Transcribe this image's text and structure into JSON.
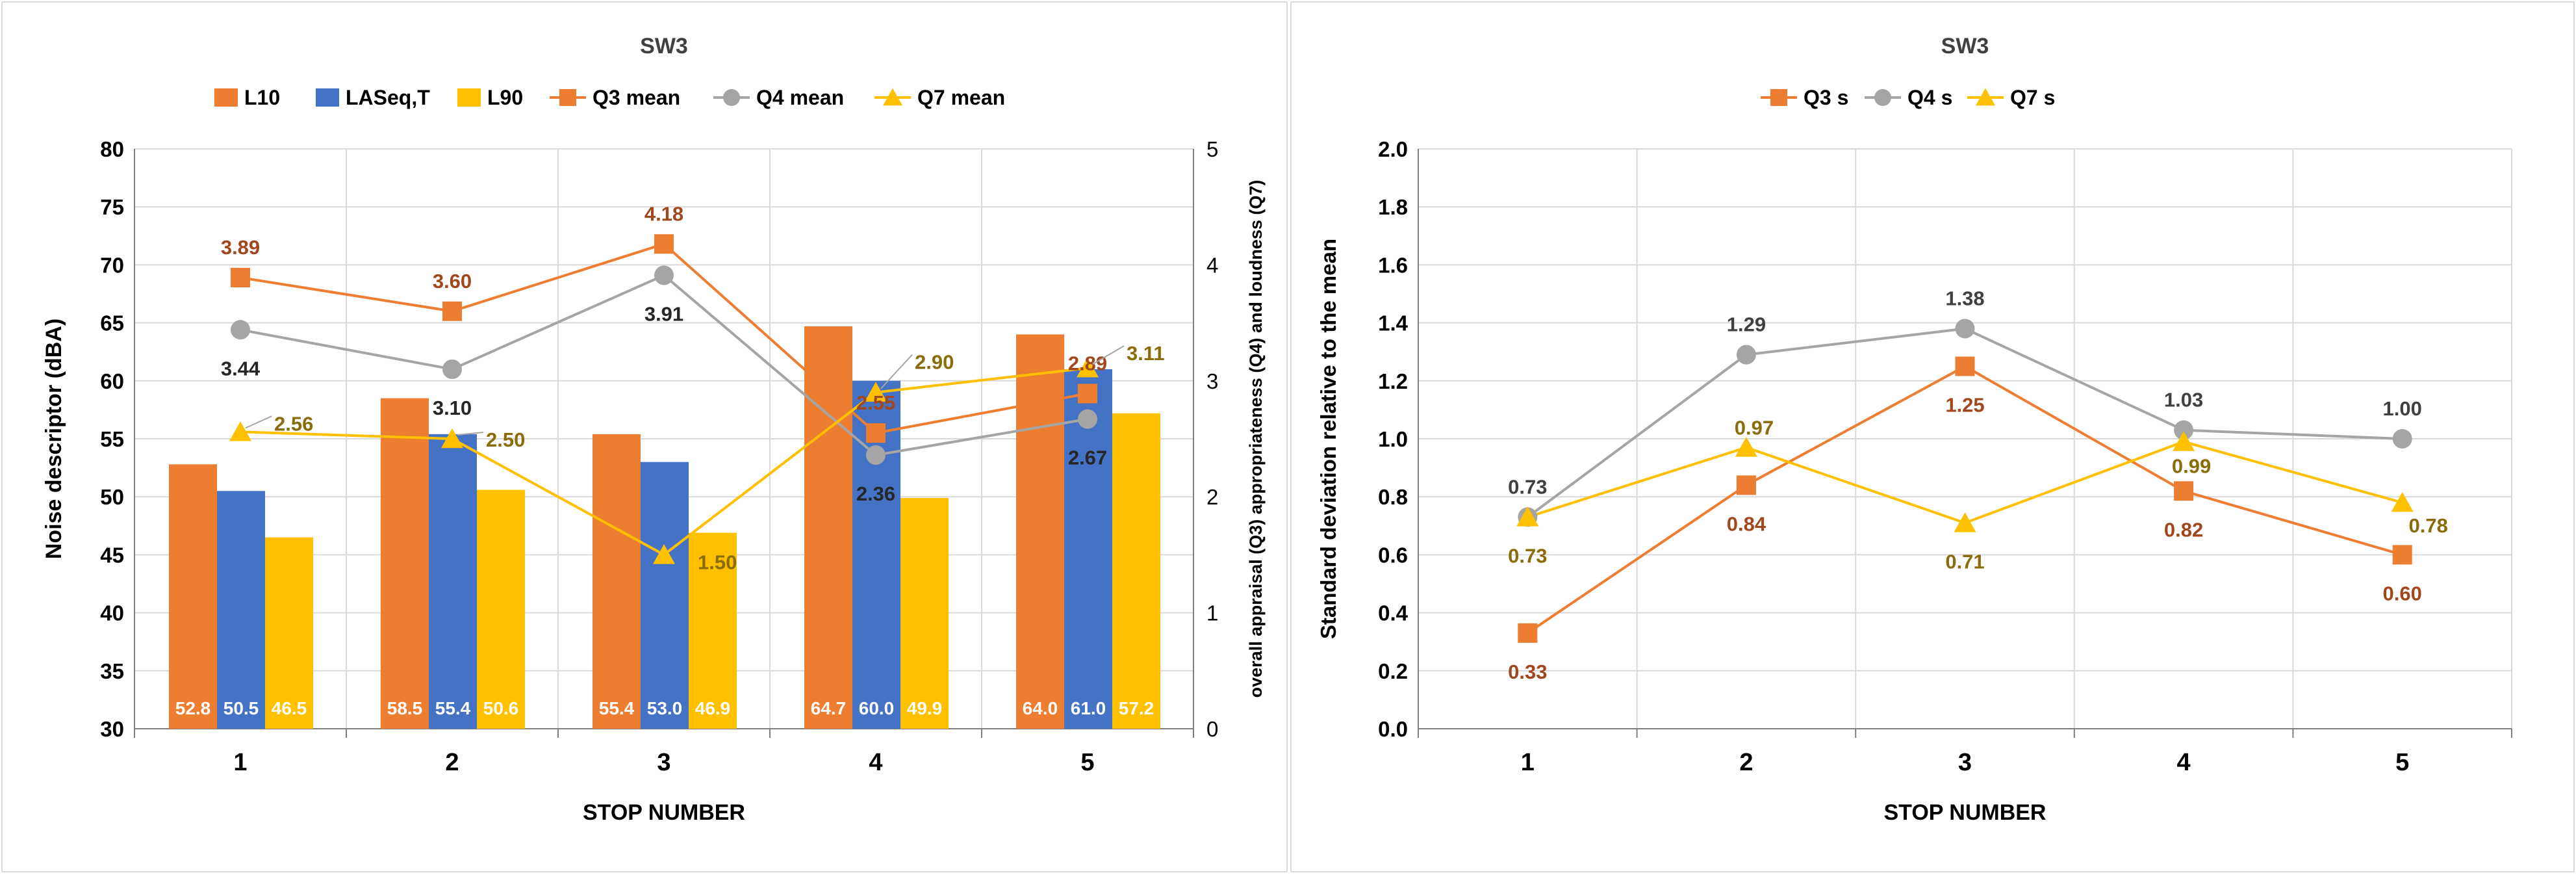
{
  "colors": {
    "orange": "#ED7D31",
    "blue": "#4472C4",
    "yellow": "#FFC000",
    "gray": "#A5A5A5",
    "dark_orange_label": "#A0471E",
    "olive_label": "#8A6D0B",
    "dark_label": "#404040",
    "grid": "#D9D9D9",
    "axis_text": "#000000"
  },
  "chart_data": [
    {
      "type": "bar",
      "title": "SW3",
      "xlabel": "STOP NUMBER",
      "ylabel": "Noise descriptor (dBA)",
      "y2label": "overall appraisal (Q3) appropriateness (Q4) and loudness (Q7)",
      "categories": [
        "1",
        "2",
        "3",
        "4",
        "5"
      ],
      "ylim": [
        30,
        80
      ],
      "yticks": [
        "30",
        "35",
        "40",
        "45",
        "50",
        "55",
        "60",
        "65",
        "70",
        "75",
        "80"
      ],
      "y2lim": [
        0,
        5
      ],
      "y2ticks": [
        "0",
        "1",
        "2",
        "3",
        "4",
        "5"
      ],
      "legend_position": "top",
      "bar_series": [
        {
          "name": "L10",
          "color": "#ED7D31",
          "values": [
            52.8,
            58.5,
            55.4,
            64.7,
            64.0
          ],
          "labels": [
            "52.8",
            "58.5",
            "55.4",
            "64.7",
            "64.0"
          ]
        },
        {
          "name": "LASeq,T",
          "color": "#4472C4",
          "values": [
            50.5,
            55.4,
            53.0,
            60.0,
            61.0
          ],
          "labels": [
            "50.5",
            "55.4",
            "53.0",
            "60.0",
            "61.0"
          ]
        },
        {
          "name": "L90",
          "color": "#FFC000",
          "values": [
            46.5,
            50.6,
            46.9,
            49.9,
            57.2
          ],
          "labels": [
            "46.5",
            "50.6",
            "46.9",
            "49.9",
            "57.2"
          ]
        }
      ],
      "line_series": [
        {
          "name": "Q3 mean",
          "color": "#ED7D31",
          "marker": "square",
          "axis": "secondary",
          "values": [
            3.89,
            3.6,
            4.18,
            2.55,
            2.89
          ],
          "labels": [
            "3.89",
            "3.60",
            "4.18",
            "2.55",
            "2.89"
          ]
        },
        {
          "name": "Q4 mean",
          "color": "#A5A5A5",
          "marker": "circle",
          "axis": "secondary",
          "values": [
            3.44,
            3.1,
            3.91,
            2.36,
            2.67
          ],
          "labels": [
            "3.44",
            "3.10",
            "3.91",
            "2.36",
            "2.67"
          ]
        },
        {
          "name": "Q7 mean",
          "color": "#FFC000",
          "marker": "triangle",
          "axis": "secondary",
          "values": [
            2.56,
            2.5,
            1.5,
            2.9,
            3.11
          ],
          "labels": [
            "2.56",
            "2.50",
            "1.50",
            "2.90",
            "3.11"
          ]
        }
      ]
    },
    {
      "type": "line",
      "title": "SW3",
      "xlabel": "STOP NUMBER",
      "ylabel": "Standard deviation relative to the mean",
      "categories": [
        "1",
        "2",
        "3",
        "4",
        "5"
      ],
      "ylim": [
        0,
        2
      ],
      "yticks": [
        "0.0",
        "0.2",
        "0.4",
        "0.6",
        "0.8",
        "1.0",
        "1.2",
        "1.4",
        "1.6",
        "1.8",
        "2.0"
      ],
      "legend_position": "top",
      "series": [
        {
          "name": "Q3 s",
          "color": "#ED7D31",
          "marker": "square",
          "values": [
            0.33,
            0.84,
            1.25,
            0.82,
            0.6
          ],
          "labels": [
            "0.33",
            "0.84",
            "1.25",
            "0.82",
            "0.60"
          ]
        },
        {
          "name": "Q4 s",
          "color": "#A5A5A5",
          "marker": "circle",
          "values": [
            0.73,
            1.29,
            1.38,
            1.03,
            1.0
          ],
          "labels": [
            "0.73",
            "1.29",
            "1.38",
            "1.03",
            "1.00"
          ]
        },
        {
          "name": "Q7 s",
          "color": "#FFC000",
          "marker": "triangle",
          "values": [
            0.73,
            0.97,
            0.71,
            0.99,
            0.78
          ],
          "labels": [
            "0.73",
            "0.97",
            "0.71",
            "0.99",
            "0.78"
          ]
        }
      ]
    }
  ]
}
